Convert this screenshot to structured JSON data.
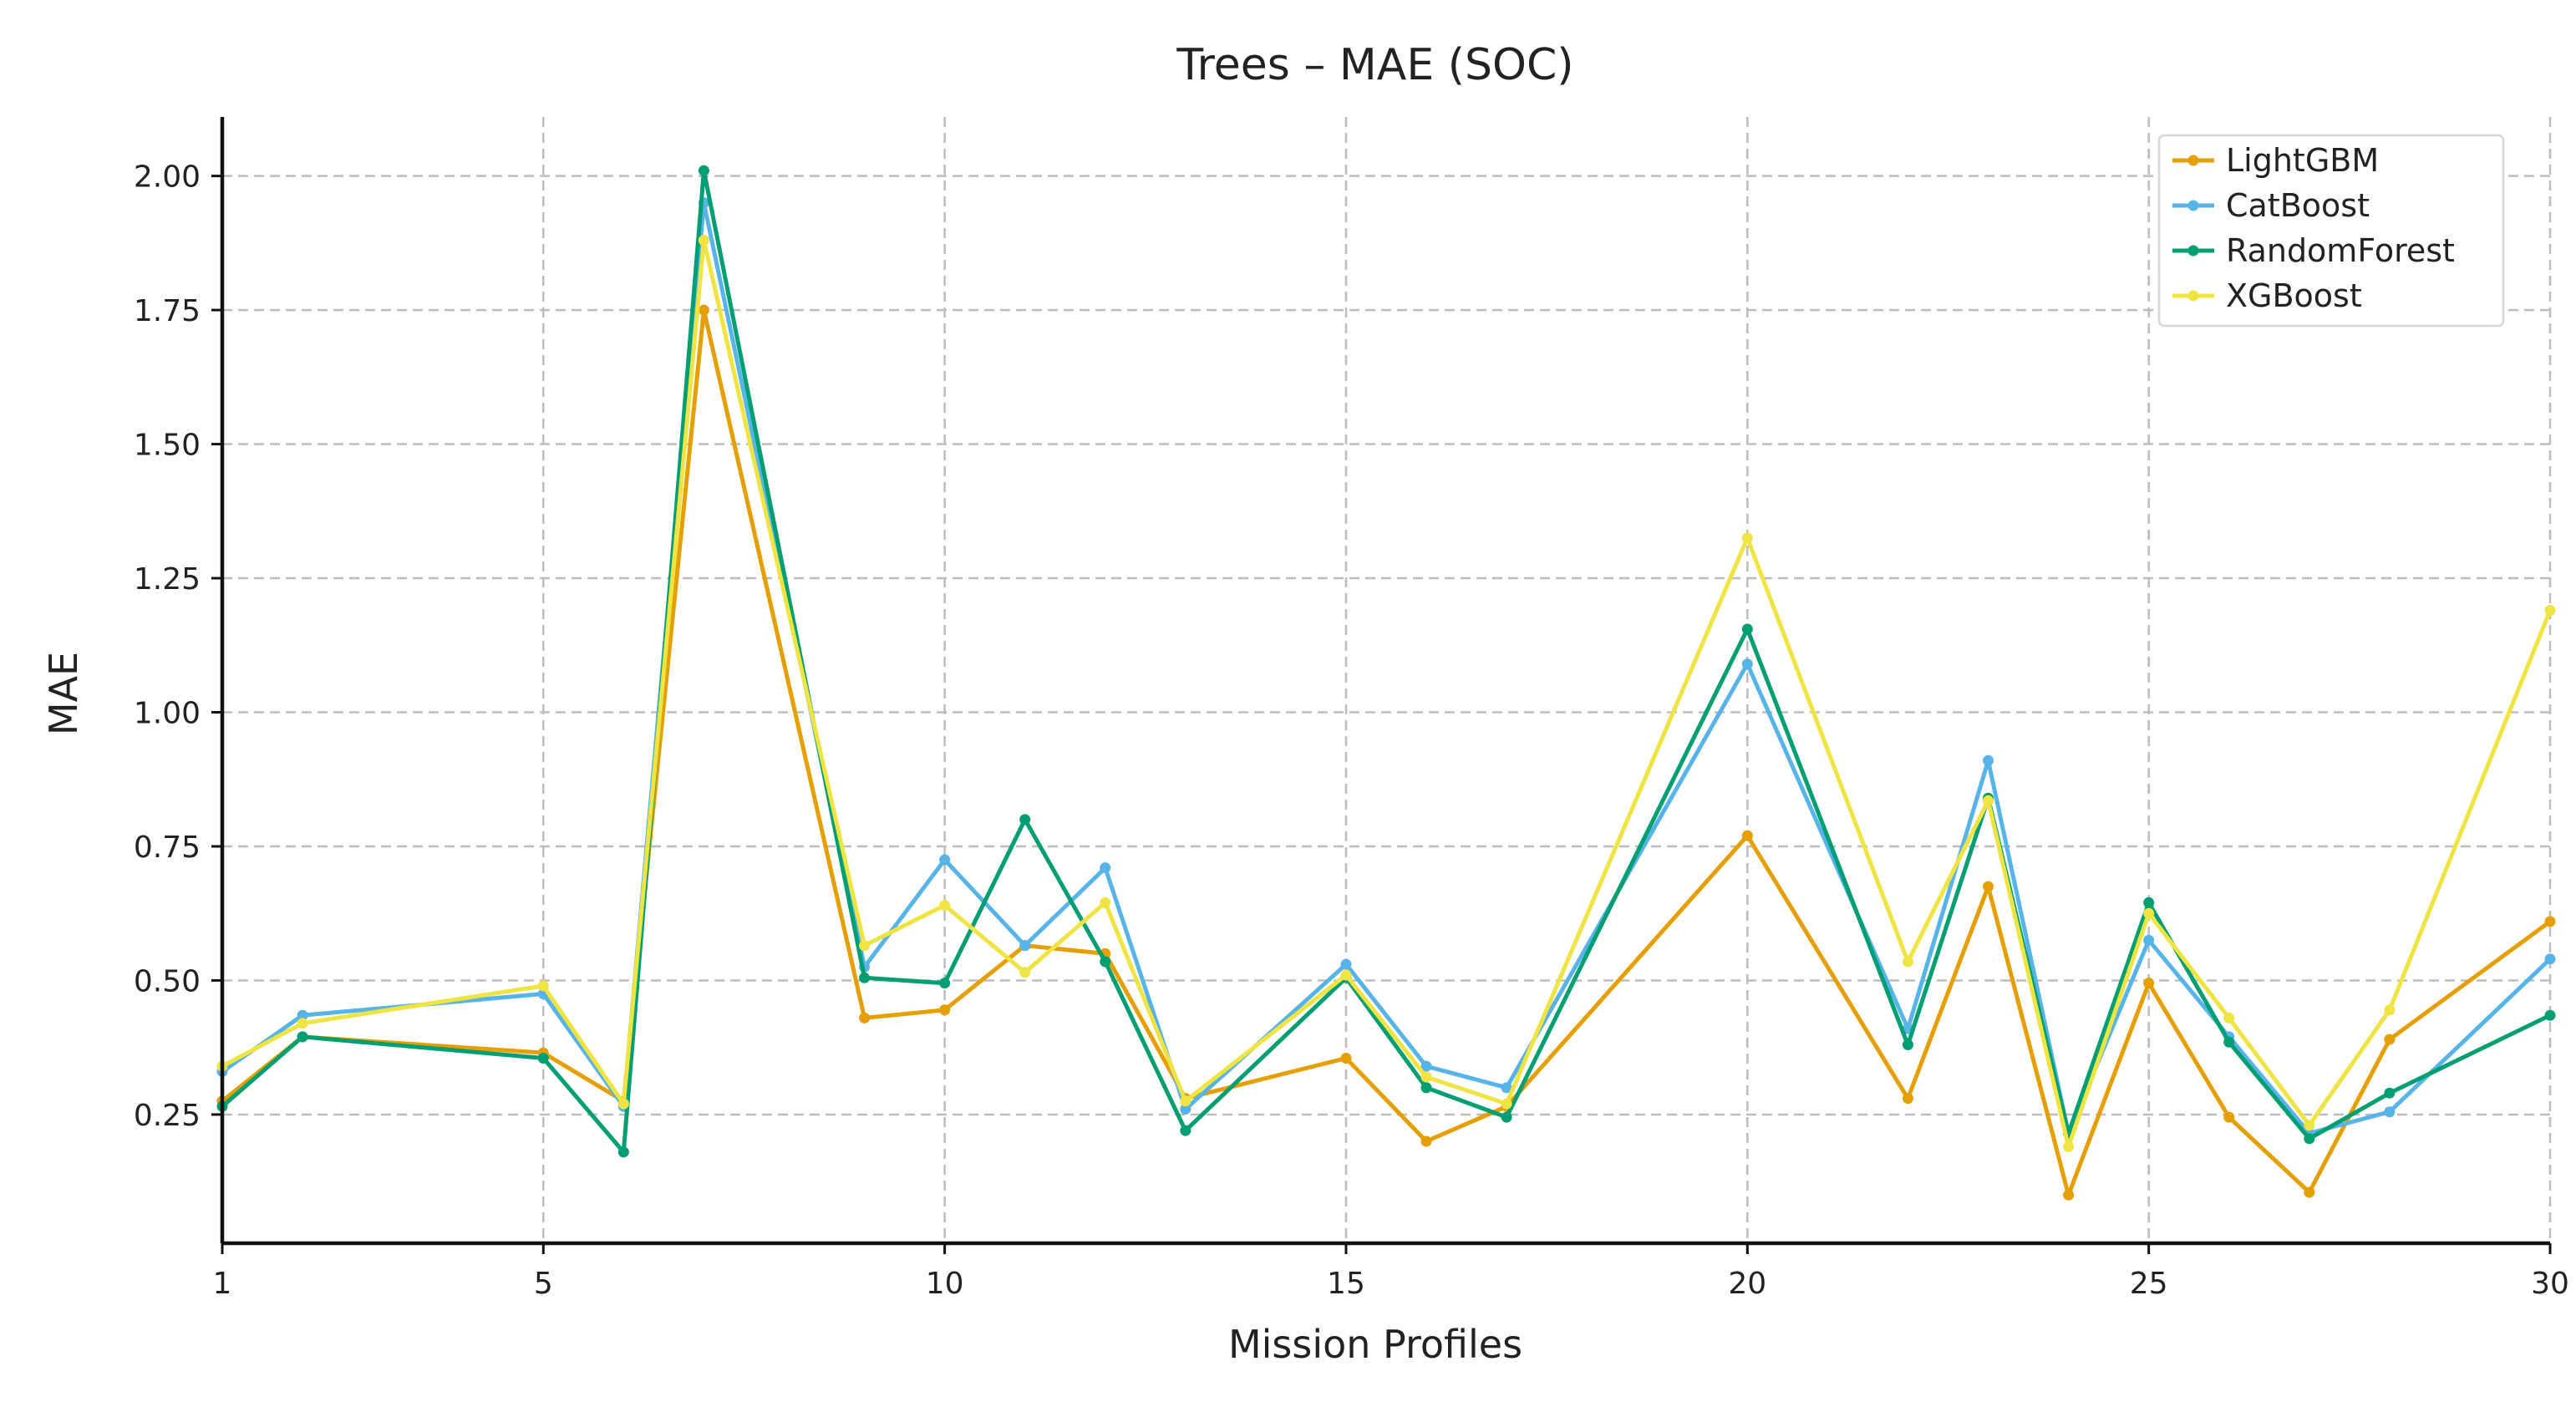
{
  "chart_data": {
    "type": "line",
    "title": "Trees – MAE (SOC)",
    "xlabel": "Mission Profiles",
    "ylabel": "MAE",
    "xlim": [
      1,
      30
    ],
    "ylim": [
      0.01,
      2.11
    ],
    "xticks": [
      1,
      5,
      10,
      15,
      20,
      25,
      30
    ],
    "yticks": [
      0.25,
      0.5,
      0.75,
      1.0,
      1.25,
      1.5,
      1.75,
      2.0
    ],
    "ytick_labels": [
      "0.25",
      "0.50",
      "0.75",
      "1.00",
      "1.25",
      "1.50",
      "1.75",
      "2.00"
    ],
    "grid": true,
    "legend_position": "top-right",
    "x": [
      1,
      2,
      5,
      6,
      7,
      9,
      10,
      11,
      12,
      13,
      15,
      16,
      17,
      20,
      22,
      23,
      24,
      25,
      26,
      27,
      28,
      30
    ],
    "series": [
      {
        "name": "LightGBM",
        "color": "#E69F00",
        "values": [
          0.275,
          0.395,
          0.365,
          0.275,
          1.75,
          0.43,
          0.445,
          0.565,
          0.55,
          0.28,
          0.355,
          0.2,
          0.265,
          0.77,
          0.28,
          0.675,
          0.1,
          0.495,
          0.245,
          0.105,
          0.39,
          0.61
        ]
      },
      {
        "name": "CatBoost",
        "color": "#56B4E9",
        "values": [
          0.33,
          0.435,
          0.475,
          0.265,
          1.95,
          0.525,
          0.725,
          0.565,
          0.71,
          0.26,
          0.53,
          0.34,
          0.3,
          1.09,
          0.41,
          0.91,
          0.215,
          0.575,
          0.395,
          0.215,
          0.255,
          0.54
        ]
      },
      {
        "name": "RandomForest",
        "color": "#009E73",
        "values": [
          0.265,
          0.395,
          0.355,
          0.18,
          2.01,
          0.505,
          0.495,
          0.8,
          0.535,
          0.22,
          0.505,
          0.3,
          0.245,
          1.155,
          0.38,
          0.84,
          0.215,
          0.645,
          0.385,
          0.205,
          0.29,
          0.435
        ]
      },
      {
        "name": "XGBoost",
        "color": "#F0E442",
        "values": [
          0.34,
          0.42,
          0.49,
          0.27,
          1.88,
          0.565,
          0.64,
          0.515,
          0.645,
          0.275,
          0.51,
          0.32,
          0.27,
          1.325,
          0.535,
          0.835,
          0.19,
          0.625,
          0.43,
          0.23,
          0.445,
          1.19
        ]
      }
    ]
  }
}
